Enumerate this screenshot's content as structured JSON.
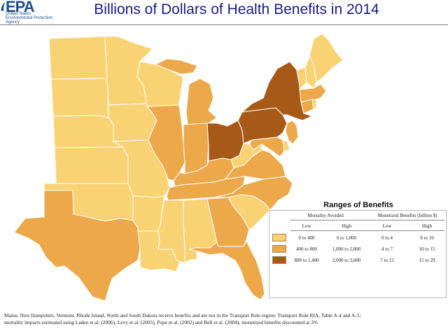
{
  "header": {
    "logo_text": "EPA",
    "logo_sub1": "United States",
    "logo_sub2": "Environmental Protection",
    "logo_sub3": "Agency",
    "title": "Billions of Dollars of Health Benefits in 2014"
  },
  "colors": {
    "light": "#f9d373",
    "mid": "#eda84a",
    "dark": "#a75a17",
    "title": "#1a1a8c",
    "logo": "#1f4e8c"
  },
  "legend": {
    "title": "Ranges of Benefits",
    "group_mortality": "Mortality Avoided",
    "group_monetized": "Monetized Benefits (billion $)",
    "col_low": "Low",
    "col_high": "High",
    "col_low2": "Low",
    "col_high2": "High",
    "rows": [
      {
        "tier": "light",
        "mort_low": "0 to 400",
        "mort_high": "0 to 1,000",
        "mon_low": "0 to 4",
        "mon_high": "0 to 10"
      },
      {
        "tier": "mid",
        "mort_low": "400 to 800",
        "mort_high": "1,000 to 2,000",
        "mon_low": "4 to 7",
        "mon_high": "10 to 15"
      },
      {
        "tier": "dark",
        "mort_low": "800 to 1,400",
        "mort_high": "2,000 to 3,600",
        "mon_low": "7 to 12",
        "mon_high": "15 to 29"
      }
    ]
  },
  "states": [
    {
      "name": "North Dakota",
      "tier": "light"
    },
    {
      "name": "South Dakota",
      "tier": "light"
    },
    {
      "name": "Nebraska",
      "tier": "light"
    },
    {
      "name": "Kansas",
      "tier": "light"
    },
    {
      "name": "Oklahoma",
      "tier": "light"
    },
    {
      "name": "Texas",
      "tier": "mid"
    },
    {
      "name": "Minnesota",
      "tier": "light"
    },
    {
      "name": "Iowa",
      "tier": "light"
    },
    {
      "name": "Missouri",
      "tier": "light"
    },
    {
      "name": "Arkansas",
      "tier": "light"
    },
    {
      "name": "Louisiana",
      "tier": "light"
    },
    {
      "name": "Wisconsin",
      "tier": "light"
    },
    {
      "name": "Illinois",
      "tier": "mid"
    },
    {
      "name": "Michigan",
      "tier": "mid"
    },
    {
      "name": "Michigan Upper Peninsula",
      "tier": "mid"
    },
    {
      "name": "Indiana",
      "tier": "mid"
    },
    {
      "name": "Ohio",
      "tier": "dark"
    },
    {
      "name": "Kentucky",
      "tier": "mid"
    },
    {
      "name": "Tennessee",
      "tier": "mid"
    },
    {
      "name": "Mississippi",
      "tier": "light"
    },
    {
      "name": "Alabama",
      "tier": "light"
    },
    {
      "name": "Georgia",
      "tier": "mid"
    },
    {
      "name": "Florida",
      "tier": "mid"
    },
    {
      "name": "South Carolina",
      "tier": "light"
    },
    {
      "name": "North Carolina",
      "tier": "mid"
    },
    {
      "name": "Virginia",
      "tier": "mid"
    },
    {
      "name": "West Virginia",
      "tier": "light"
    },
    {
      "name": "Pennsylvania",
      "tier": "dark"
    },
    {
      "name": "New York",
      "tier": "dark"
    },
    {
      "name": "New Jersey",
      "tier": "mid"
    },
    {
      "name": "Delaware",
      "tier": "light"
    },
    {
      "name": "Maryland",
      "tier": "mid"
    },
    {
      "name": "Connecticut",
      "tier": "mid"
    },
    {
      "name": "Rhode Island",
      "tier": "light"
    },
    {
      "name": "Massachusetts",
      "tier": "mid"
    },
    {
      "name": "Vermont",
      "tier": "light"
    },
    {
      "name": "New Hampshire",
      "tier": "light"
    },
    {
      "name": "Maine",
      "tier": "light"
    }
  ],
  "footnote": {
    "line1": "Maine, New Hampshire, Vermont, Rhode Island, North and South Dakota receive benefits and are not in the Transport Rule region.  Transport Rule RIA, Table A-4 and A-5;",
    "line2": "mortality impacts estimated using Laden et al. (2006), Levy et al. (2005), Pope et al. (2002)  and Bell et al. (2004); monetized benefits discounted at 3%"
  }
}
